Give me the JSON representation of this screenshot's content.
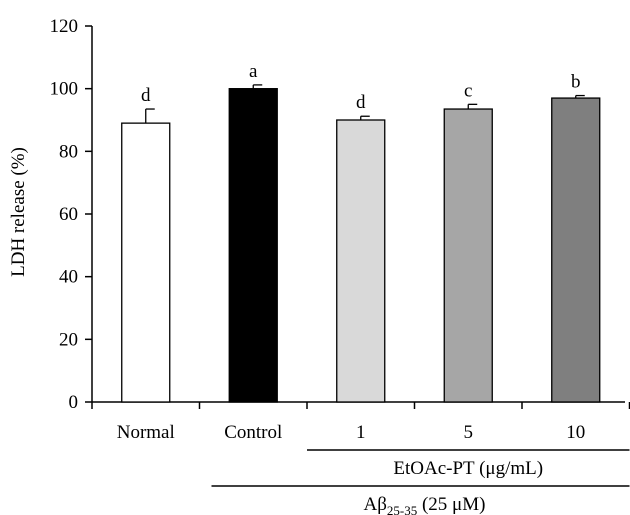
{
  "chart_data": {
    "type": "bar",
    "ylabel": "LDH release (%)",
    "xlabel": "",
    "ylim": [
      0,
      120
    ],
    "yticks": [
      0,
      20,
      40,
      60,
      80,
      100,
      120
    ],
    "grid": false,
    "categories": [
      "Normal",
      "Control",
      "1",
      "5",
      "10"
    ],
    "values": [
      89,
      100,
      90,
      93.5,
      97
    ],
    "errors": [
      4.5,
      1.2,
      1.2,
      1.5,
      0.8
    ],
    "significance_letters": [
      "d",
      "a",
      "d",
      "c",
      "b"
    ],
    "bar_colors": [
      "#ffffff",
      "#000000",
      "#d9d9d9",
      "#a6a6a6",
      "#7f7f7f"
    ],
    "group_labels": [
      {
        "text": "EtOAc-PT (μg/mL)",
        "spans": [
          "1",
          "5",
          "10"
        ]
      },
      {
        "text_main": "Aβ",
        "text_sub": "25-35",
        "text_rest": " (25 μM)",
        "spans": [
          "Control",
          "1",
          "5",
          "10"
        ]
      }
    ]
  }
}
